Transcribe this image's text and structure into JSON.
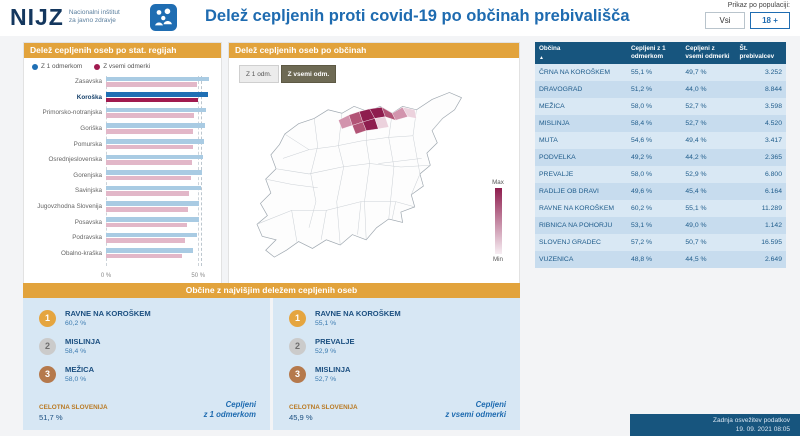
{
  "colors": {
    "accent_orange": "#e2a33c",
    "header_blue": "#17557e",
    "title_blue": "#1e6bb0",
    "bar_dose1": "#a9cbe3",
    "bar_full": "#e2b7c8",
    "bar_dose1_highlight": "#1f6fb4",
    "bar_full_highlight": "#a01a4f",
    "map_max": "#8e1d4e",
    "map_min": "#f7eef3"
  },
  "header": {
    "logo_text": "NIJZ",
    "logo_sub1": "Nacionalni inštitut",
    "logo_sub2": "za javno zdravje",
    "title": "Delež cepljenih proti covid-19 po občinah prebivališča",
    "population_label": "Prikaz po populaciji:",
    "population_options": [
      {
        "label": "Vsi",
        "selected": false
      },
      {
        "label": "18 +",
        "selected": true
      }
    ]
  },
  "regions_panel": {
    "title": "Delež cepljenih oseb po stat. regijah",
    "legend": [
      {
        "label": "Z 1 odmerkom",
        "color": "#1f6fb4"
      },
      {
        "label": "Z vsemi odmerki",
        "color": "#a01a4f"
      }
    ],
    "x_ticks": [
      "0 %",
      "50 %"
    ]
  },
  "map_panel": {
    "title": "Delež cepljenih oseb po občinah",
    "toggle": [
      {
        "label": "Z 1 odm.",
        "selected": false
      },
      {
        "label": "Z vsemi odm.",
        "selected": true
      }
    ],
    "legend_max": "Max",
    "legend_min": "Min"
  },
  "table": {
    "sort_icon": "▲",
    "columns": [
      "Občina",
      "Cepljeni z 1 odmerkom",
      "Cepljeni z vsemi odmerki",
      "Št. prebivalcev"
    ],
    "rows": [
      [
        "ČRNA NA KOROŠKEM",
        "55,1 %",
        "49,7 %",
        "3.252"
      ],
      [
        "DRAVOGRAD",
        "51,2 %",
        "44,0 %",
        "8.844"
      ],
      [
        "MEŽICA",
        "58,0 %",
        "52,7 %",
        "3.598"
      ],
      [
        "MISLINJA",
        "58,4 %",
        "52,7 %",
        "4.520"
      ],
      [
        "MUTA",
        "54,6 %",
        "49,4 %",
        "3.417"
      ],
      [
        "PODVELKA",
        "49,2 %",
        "44,2 %",
        "2.365"
      ],
      [
        "PREVALJE",
        "58,0 %",
        "52,9 %",
        "6.800"
      ],
      [
        "RADLJE OB DRAVI",
        "49,6 %",
        "45,4 %",
        "6.164"
      ],
      [
        "RAVNE NA KOROŠKEM",
        "60,2 %",
        "55,1 %",
        "11.289"
      ],
      [
        "RIBNICA NA POHORJU",
        "53,1 %",
        "49,0 %",
        "1.142"
      ],
      [
        "SLOVENJ GRADEC",
        "57,2 %",
        "50,7 %",
        "16.595"
      ],
      [
        "VUZENICA",
        "48,8 %",
        "44,5 %",
        "2.649"
      ]
    ]
  },
  "top_panel": {
    "title": "Občine z najvišjim deležem cepljenih oseb",
    "sides": [
      {
        "items": [
          {
            "rank": "1",
            "name": "RAVNE NA KOROŠKEM",
            "value": "60,2 %"
          },
          {
            "rank": "2",
            "name": "MISLINJA",
            "value": "58,4 %"
          },
          {
            "rank": "3",
            "name": "MEŽICA",
            "value": "58,0 %"
          }
        ],
        "total_label": "CELOTNA SLOVENIJA",
        "total_value": "51,7 %",
        "caption_line1": "Cepljeni",
        "caption_line2": "z 1 odmerkom"
      },
      {
        "items": [
          {
            "rank": "1",
            "name": "RAVNE NA KOROŠKEM",
            "value": "55,1 %"
          },
          {
            "rank": "2",
            "name": "PREVALJE",
            "value": "52,9 %"
          },
          {
            "rank": "3",
            "name": "MISLINJA",
            "value": "52,7 %"
          }
        ],
        "total_label": "CELOTNA SLOVENIJA",
        "total_value": "45,9 %",
        "caption_line1": "Cepljeni",
        "caption_line2": "z vsemi odmerki"
      }
    ]
  },
  "footer": {
    "line1": "Zadnja osvežitev podatkov",
    "line2": "19. 09. 2021 08:05"
  },
  "chart_data": [
    {
      "type": "bar",
      "orientation": "horizontal",
      "title": "Delež cepljenih oseb po stat. regijah",
      "categories": [
        "Zasavska",
        "Koroška",
        "Primorsko-notranjska",
        "Goriška",
        "Pomurska",
        "Osrednjeslovenska",
        "Gorenjska",
        "Savinjska",
        "Jugovzhodna Slovenija",
        "Posavska",
        "Podravska",
        "Obalno-kraška"
      ],
      "series": [
        {
          "name": "Z 1 odmerkom",
          "color": "#1f6fb4",
          "values": [
            55.6,
            55.2,
            54.0,
            53.6,
            53.2,
            52.6,
            52.2,
            51.4,
            50.6,
            50.2,
            49.2,
            47.2
          ]
        },
        {
          "name": "Z vsemi odmerki",
          "color": "#a01a4f",
          "values": [
            49.4,
            49.8,
            47.8,
            47.4,
            47.0,
            46.4,
            46.0,
            45.2,
            44.4,
            44.0,
            43.0,
            41.0
          ]
        }
      ],
      "xlim": [
        0,
        58
      ],
      "x_ticks": [
        0,
        50
      ],
      "national_average_dose1": 51.7,
      "highlight_category": "Koroška",
      "grid": "dashed vertical at ticks",
      "legend_position": "top-left"
    },
    {
      "type": "heatmap",
      "subtype": "choropleth",
      "title": "Delež cepljenih oseb po občinah",
      "selected_metric": "Z vsemi odm.",
      "legend": {
        "max_label": "Max",
        "min_label": "Min",
        "max_color": "#8e1d4e",
        "min_color": "#f7eef3"
      },
      "highlighted_region": "Koroška",
      "municipalities": [
        {
          "name": "ČRNA NA KOROŠKEM",
          "dose1": 55.1,
          "full": 49.7,
          "pop": 3252
        },
        {
          "name": "DRAVOGRAD",
          "dose1": 51.2,
          "full": 44.0,
          "pop": 8844
        },
        {
          "name": "MEŽICA",
          "dose1": 58.0,
          "full": 52.7,
          "pop": 3598
        },
        {
          "name": "MISLINJA",
          "dose1": 58.4,
          "full": 52.7,
          "pop": 4520
        },
        {
          "name": "MUTA",
          "dose1": 54.6,
          "full": 49.4,
          "pop": 3417
        },
        {
          "name": "PODVELKA",
          "dose1": 49.2,
          "full": 44.2,
          "pop": 2365
        },
        {
          "name": "PREVALJE",
          "dose1": 58.0,
          "full": 52.9,
          "pop": 6800
        },
        {
          "name": "RADLJE OB DRAVI",
          "dose1": 49.6,
          "full": 45.4,
          "pop": 6164
        },
        {
          "name": "RAVNE NA KOROŠKEM",
          "dose1": 60.2,
          "full": 55.1,
          "pop": 11289
        },
        {
          "name": "RIBNICA NA POHORJU",
          "dose1": 53.1,
          "full": 49.0,
          "pop": 1142
        },
        {
          "name": "SLOVENJ GRADEC",
          "dose1": 57.2,
          "full": 50.7,
          "pop": 16595
        },
        {
          "name": "VUZENICA",
          "dose1": 48.8,
          "full": 44.5,
          "pop": 2649
        }
      ]
    }
  ]
}
